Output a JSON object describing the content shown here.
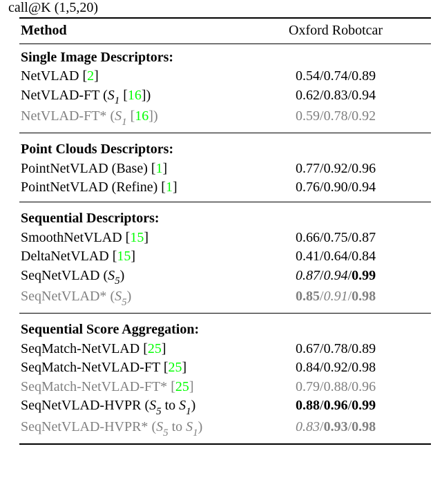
{
  "caption": "call@K (1,5,20)",
  "header": {
    "method": "Method",
    "col": "Oxford Robotcar"
  },
  "colors": {
    "text": "#000000",
    "gray": "#808080",
    "cite": "#00ff00",
    "bg": "#ffffff"
  },
  "sections": [
    {
      "title": "Single Image Descriptors:",
      "rows": [
        {
          "name": "NetVLAD",
          "suffix": "",
          "cite": "2",
          "gray": false,
          "vals": [
            "0.54",
            "0.74",
            "0.89"
          ],
          "fmt": [
            "",
            "",
            ""
          ]
        },
        {
          "name": "NetVLAD-FT",
          "suffix": "S1",
          "cite": "16",
          "gray": false,
          "vals": [
            "0.62",
            "0.83",
            "0.94"
          ],
          "fmt": [
            "",
            "",
            ""
          ]
        },
        {
          "name": "NetVLAD-FT*",
          "suffix": "S1",
          "cite": "16",
          "gray": true,
          "vals": [
            "0.59",
            "0.78",
            "0.92"
          ],
          "fmt": [
            "",
            "",
            ""
          ]
        }
      ]
    },
    {
      "title": "Point Clouds Descriptors:",
      "rows": [
        {
          "name": "PointNetVLAD (Base)",
          "suffix": "",
          "cite": "1",
          "gray": false,
          "vals": [
            "0.77",
            "0.92",
            "0.96"
          ],
          "fmt": [
            "",
            "",
            ""
          ]
        },
        {
          "name": "PointNetVLAD (Refine)",
          "suffix": "",
          "cite": "1",
          "gray": false,
          "vals": [
            "0.76",
            "0.90",
            "0.94"
          ],
          "fmt": [
            "",
            "",
            ""
          ]
        }
      ]
    },
    {
      "title": "Sequential Descriptors:",
      "rows": [
        {
          "name": "SmoothNetVLAD",
          "suffix": "",
          "cite": "15",
          "gray": false,
          "vals": [
            "0.66",
            "0.75",
            "0.87"
          ],
          "fmt": [
            "",
            "",
            ""
          ]
        },
        {
          "name": "DeltaNetVLAD",
          "suffix": "",
          "cite": "15",
          "gray": false,
          "vals": [
            "0.41",
            "0.64",
            "0.84"
          ],
          "fmt": [
            "",
            "",
            ""
          ]
        },
        {
          "name": "SeqNetVLAD",
          "suffix": "S5",
          "cite": "",
          "gray": false,
          "vals": [
            "0.87",
            "0.94",
            "0.99"
          ],
          "fmt": [
            "i",
            "i",
            "b"
          ]
        },
        {
          "name": "SeqNetVLAD*",
          "suffix": "S5",
          "cite": "",
          "gray": true,
          "vals": [
            "0.85",
            "0.91",
            "0.98"
          ],
          "fmt": [
            "b",
            "i",
            "b"
          ]
        }
      ]
    },
    {
      "title": "Sequential Score Aggregation:",
      "rows": [
        {
          "name": "SeqMatch-NetVLAD",
          "suffix": "",
          "cite": "25",
          "gray": false,
          "vals": [
            "0.67",
            "0.78",
            "0.89"
          ],
          "fmt": [
            "",
            "",
            ""
          ]
        },
        {
          "name": "SeqMatch-NetVLAD-FT",
          "suffix": "",
          "cite": "25",
          "gray": false,
          "vals": [
            "0.84",
            "0.92",
            "0.98"
          ],
          "fmt": [
            "",
            "",
            ""
          ]
        },
        {
          "name": "SeqMatch-NetVLAD-FT*",
          "suffix": "",
          "cite": "25",
          "gray": true,
          "vals": [
            "0.79",
            "0.88",
            "0.96"
          ],
          "fmt": [
            "",
            "",
            ""
          ]
        },
        {
          "name": "SeqNetVLAD-HVPR",
          "suffix": "S5toS1",
          "cite": "",
          "gray": false,
          "vals": [
            "0.88",
            "0.96",
            "0.99"
          ],
          "fmt": [
            "b",
            "b",
            "b"
          ]
        },
        {
          "name": "SeqNetVLAD-HVPR*",
          "suffix": "S5toS1",
          "cite": "",
          "gray": true,
          "vals": [
            "0.83",
            "0.93",
            "0.98"
          ],
          "fmt": [
            "i",
            "b",
            "b"
          ]
        }
      ]
    }
  ]
}
